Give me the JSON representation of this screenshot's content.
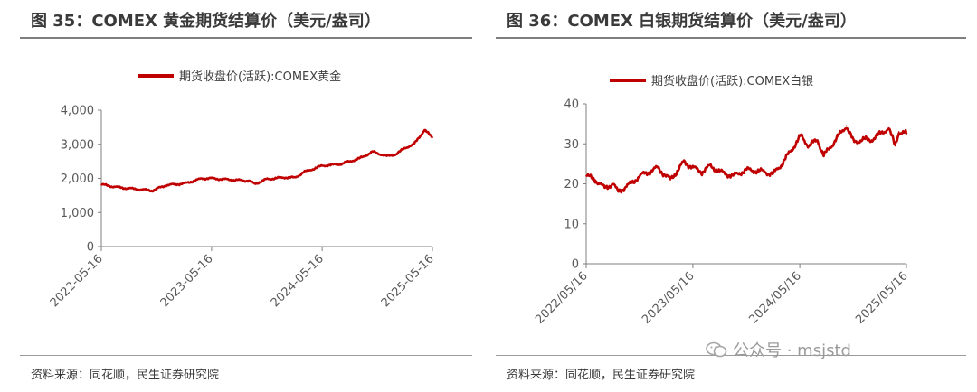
{
  "left_panel": {
    "title": "图 35：COMEX 黄金期货结算价（美元/盎司）",
    "source": "资料来源：同花顺，民生证券研究院"
  },
  "right_panel": {
    "title": "图 36：COMEX 白银期货结算价（美元/盎司）",
    "source": "资料来源：同花顺，民生证券研究院"
  },
  "watermark": {
    "text": "公众号 · msjstd",
    "icon": "wechat-icon"
  },
  "chart_data": [
    {
      "type": "line",
      "series": [
        {
          "name": "期货收盘价(活跃):COMEX黄金",
          "color": "#c00000",
          "x": [
            "2022-05-16",
            "2022-07-16",
            "2022-09-16",
            "2022-11-01",
            "2022-12-16",
            "2023-02-16",
            "2023-04-16",
            "2023-05-16",
            "2023-07-16",
            "2023-09-16",
            "2023-10-06",
            "2023-11-16",
            "2024-01-16",
            "2024-02-16",
            "2024-03-16",
            "2024-05-16",
            "2024-07-16",
            "2024-09-16",
            "2024-10-31",
            "2024-12-16",
            "2025-01-16",
            "2025-02-16",
            "2025-03-16",
            "2025-04-20",
            "2025-05-16"
          ],
          "values": [
            1820,
            1730,
            1680,
            1640,
            1800,
            1850,
            2000,
            2000,
            1960,
            1930,
            1840,
            1980,
            2030,
            2020,
            2180,
            2370,
            2420,
            2580,
            2780,
            2650,
            2710,
            2900,
            3000,
            3420,
            3200
          ]
        }
      ],
      "x_tick_labels": [
        "2022-05-16",
        "2023-05-16",
        "2024-05-16",
        "2025-05-16"
      ],
      "y_tick_labels": [
        "0",
        "1,000",
        "2,000",
        "3,000",
        "4,000"
      ],
      "ylim": [
        0,
        4000
      ],
      "xlabel": "",
      "ylabel": "",
      "grid": false,
      "legend": "top-center"
    },
    {
      "type": "line",
      "series": [
        {
          "name": "期货收盘价(活跃):COMEX白银",
          "color": "#c00000",
          "x": [
            "2022-05-16",
            "2022-06-16",
            "2022-07-16",
            "2022-08-16",
            "2022-09-01",
            "2022-10-16",
            "2022-11-16",
            "2023-01-16",
            "2023-02-28",
            "2023-04-16",
            "2023-05-16",
            "2023-06-16",
            "2023-07-16",
            "2023-08-16",
            "2023-10-01",
            "2023-11-16",
            "2024-01-16",
            "2024-02-16",
            "2024-03-16",
            "2024-05-20",
            "2024-06-16",
            "2024-07-16",
            "2024-08-06",
            "2024-09-16",
            "2024-10-22",
            "2024-11-16",
            "2024-12-16",
            "2025-01-16",
            "2025-02-16",
            "2025-03-16",
            "2025-04-07",
            "2025-04-20",
            "2025-05-16"
          ],
          "values": [
            22,
            21,
            19,
            20,
            18,
            20,
            22,
            24,
            21,
            25.5,
            24,
            23,
            24.5,
            23,
            22,
            23.5,
            23,
            22.5,
            25,
            32,
            29.5,
            31,
            27,
            31,
            34.5,
            30.5,
            31,
            31,
            32.5,
            34,
            29.5,
            33,
            32.5
          ]
        }
      ],
      "x_tick_labels": [
        "2022/05/16",
        "2023/05/16",
        "2024/05/16",
        "2025/05/16"
      ],
      "y_tick_labels": [
        "0",
        "10",
        "20",
        "30",
        "40"
      ],
      "ylim": [
        0,
        40
      ],
      "xlabel": "",
      "ylabel": "",
      "grid": false,
      "legend": "top-center"
    }
  ]
}
